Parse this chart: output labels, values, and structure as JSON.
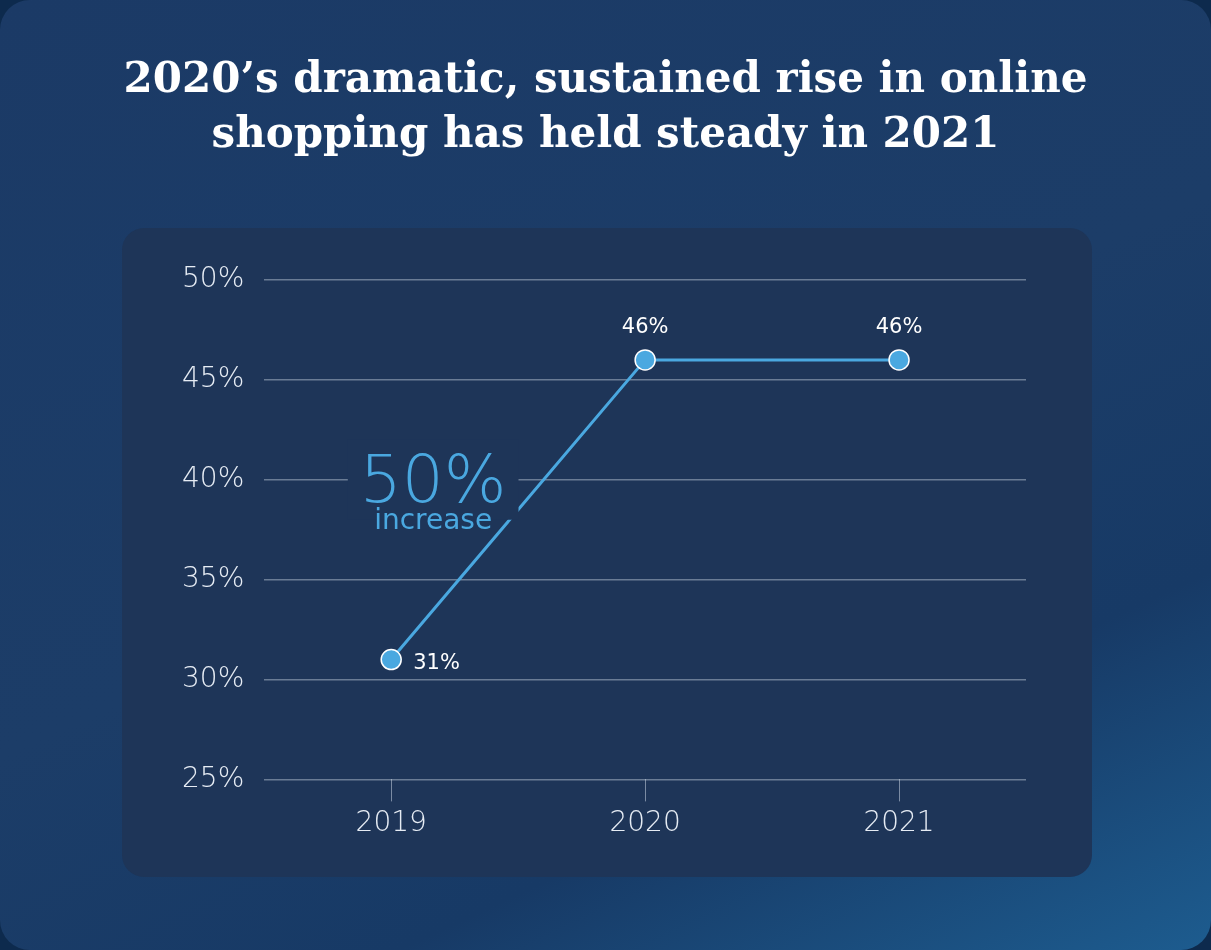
{
  "chart_data": {
    "type": "line",
    "title": "2020’s dramatic, sustained rise in online shopping has held steady in 2021",
    "categories": [
      "2019",
      "2020",
      "2021"
    ],
    "series": [
      {
        "color": "#4aa8e0",
        "values": [
          31,
          46,
          46
        ],
        "value_labels": [
          "31%",
          "46%",
          "46%"
        ]
      }
    ],
    "ylim": [
      25,
      50
    ],
    "yticks": [
      {
        "value": 25,
        "label": "25%"
      },
      {
        "value": 30,
        "label": "30%"
      },
      {
        "value": 35,
        "label": "35%"
      },
      {
        "value": 40,
        "label": "40%"
      },
      {
        "value": 45,
        "label": "45%"
      },
      {
        "value": 50,
        "label": "50%"
      }
    ],
    "annotations": [
      "50%",
      "increase"
    ],
    "grid": "y",
    "legend": false,
    "marker": "circle",
    "line_style": "solid"
  }
}
